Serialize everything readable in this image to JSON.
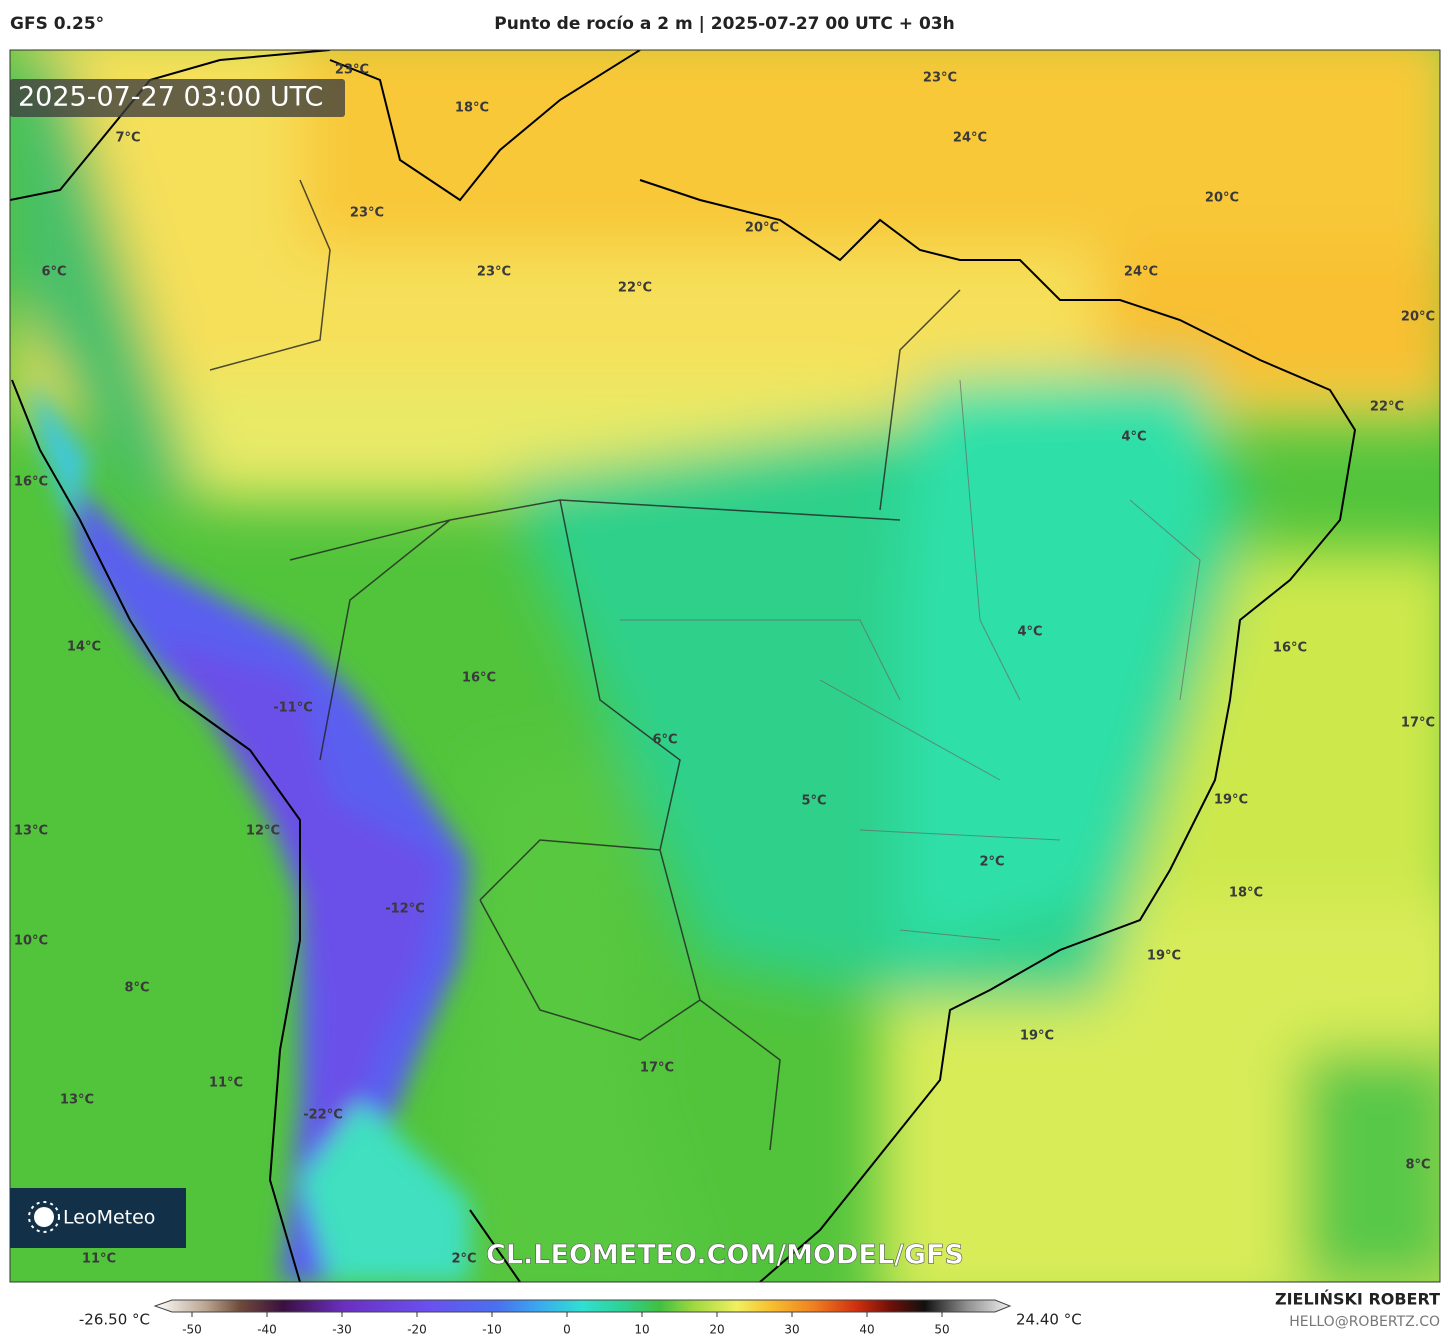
{
  "header": {
    "model": "GFS 0.25°",
    "title": "Punto de rocío a 2 m | 2025-07-27 00 UTC + 03h"
  },
  "map": {
    "timestamp": "2025-07-27 03:00 UTC",
    "labels": [
      "23°C",
      "18°C",
      "7°C",
      "23°C",
      "6°C",
      "23°C",
      "22°C",
      "20°C",
      "23°C",
      "24°C",
      "20°C",
      "24°C",
      "20°C",
      "22°C",
      "4°C",
      "16°C",
      "14°C",
      "16°C",
      "4°C",
      "16°C",
      "17°C",
      "-11°C",
      "6°C",
      "5°C",
      "19°C",
      "13°C",
      "12°C",
      "2°C",
      "18°C",
      "-12°C",
      "10°C",
      "19°C",
      "8°C",
      "19°C",
      "17°C",
      "11°C",
      "13°C",
      "-22°C",
      "8°C",
      "11°C",
      "2°C"
    ],
    "logo": "LeoMeteo",
    "watermark": "CL.LEOMETEO.COM/MODEL/GFS"
  },
  "colorbar": {
    "min_label": "-26.50 °C",
    "max_label": "24.40 °C",
    "ticks": [
      -50,
      -40,
      -30,
      -20,
      -10,
      0,
      10,
      20,
      30,
      40,
      50
    ]
  },
  "footer": {
    "author": "ZIELIŃSKI ROBERT",
    "email": "HELLO@ROBERTZ.CO"
  }
}
